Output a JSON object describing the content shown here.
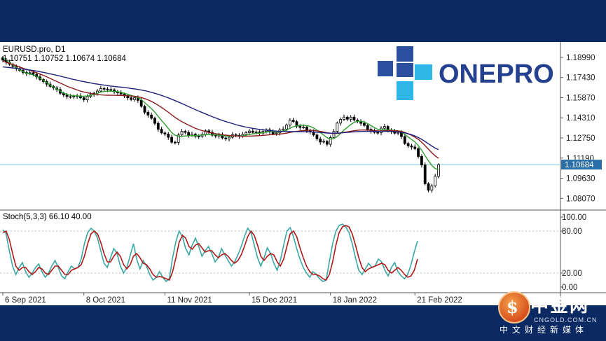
{
  "header": {
    "symbol_line": "EURUSD.pro, D1",
    "ohlc_line": "1.10751 1.10752 1.10674 1.10684"
  },
  "logo": {
    "text": "ONEPRO"
  },
  "watermark": {
    "cn": "中金网",
    "domain": "CNGOLD.COM.CN",
    "sub": "中文财经新媒体"
  },
  "colors": {
    "up_candle": "#ffffff",
    "down_candle": "#000000",
    "ma_fast": "#2e9e2e",
    "ma_mid": "#8b1c1c",
    "ma_slow": "#1f1f7a",
    "stoch_main": "#3aa7a3",
    "stoch_signal": "#b01818",
    "price_line": "#7fc8d6",
    "price_label_bg": "#2b6fa8",
    "background_band": "#0b2a63"
  },
  "chart_data": [
    {
      "type": "candlestick",
      "title": "EURUSD.pro, D1",
      "current_price": 1.10684,
      "current_price_label": "1.10684",
      "ylim": [
        1.0738,
        1.2018
      ],
      "y_ticks": [
        "1.18990",
        "1.17430",
        "1.15870",
        "1.14310",
        "1.12750",
        "1.11190",
        "1.09630",
        "1.08070"
      ],
      "x_tick_labels": [
        "6 Sep 2021",
        "8 Oct 2021",
        "11 Nov 2021",
        "15 Dec 2021",
        "18 Jan 2022",
        "21 Feb 2022"
      ],
      "x_ticks_at_bar": [
        0,
        24,
        48,
        73,
        97,
        122
      ],
      "series": [
        {
          "kind": "price",
          "close": [
            1.1878,
            1.1862,
            1.1845,
            1.1828,
            1.1812,
            1.1798,
            1.1782,
            1.1774,
            1.178,
            1.1768,
            1.1748,
            1.1728,
            1.1712,
            1.1692,
            1.1674,
            1.1662,
            1.165,
            1.1621,
            1.1607,
            1.1595,
            1.1592,
            1.1598,
            1.1601,
            1.1586,
            1.157,
            1.1596,
            1.161,
            1.1622,
            1.1638,
            1.1658,
            1.1654,
            1.165,
            1.1648,
            1.1632,
            1.1624,
            1.1615,
            1.16,
            1.1586,
            1.1572,
            1.1588,
            1.1566,
            1.152,
            1.1474,
            1.1452,
            1.1428,
            1.1388,
            1.1342,
            1.1314,
            1.1305,
            1.128,
            1.1242,
            1.124,
            1.1298,
            1.1326,
            1.1318,
            1.1296,
            1.1304,
            1.1288,
            1.1287,
            1.1302,
            1.133,
            1.1318,
            1.1296,
            1.129,
            1.1298,
            1.1275,
            1.1268,
            1.128,
            1.13,
            1.1296,
            1.1288,
            1.1302,
            1.1316,
            1.1328,
            1.1318,
            1.1322,
            1.1312,
            1.1326,
            1.1338,
            1.1322,
            1.1308,
            1.1314,
            1.1336,
            1.1344,
            1.1375,
            1.1412,
            1.1402,
            1.1366,
            1.1356,
            1.136,
            1.133,
            1.1322,
            1.1298,
            1.1268,
            1.1243,
            1.1248,
            1.1226,
            1.1278,
            1.1326,
            1.139,
            1.1418,
            1.1436,
            1.142,
            1.1436,
            1.1414,
            1.1404,
            1.1388,
            1.1372,
            1.1342,
            1.1328,
            1.1318,
            1.1316,
            1.135,
            1.1364,
            1.1334,
            1.1326,
            1.1312,
            1.1318,
            1.1286,
            1.1232,
            1.1214,
            1.1205,
            1.1192,
            1.1132,
            1.1066,
            1.092,
            1.087,
            1.0904,
            1.0978,
            1.1068
          ]
        },
        {
          "name": "",
          "kind": "ma",
          "period": 8,
          "color": "#2e9e2e",
          "values": [
            1.1898,
            1.1876,
            1.1858,
            1.1838,
            1.182,
            1.1802,
            1.1788,
            1.1776,
            1.177,
            1.1763,
            1.1752,
            1.1738,
            1.1721,
            1.1704,
            1.1686,
            1.1669,
            1.1654,
            1.1637,
            1.1623,
            1.1612,
            1.1605,
            1.1602,
            1.1601,
            1.1599,
            1.1598,
            1.16,
            1.1605,
            1.1612,
            1.162,
            1.163,
            1.1635,
            1.1637,
            1.1638,
            1.1636,
            1.1633,
            1.1628,
            1.1621,
            1.1613,
            1.1604,
            1.1597,
            1.1588,
            1.1572,
            1.1549,
            1.1525,
            1.1502,
            1.1474,
            1.1442,
            1.141,
            1.138,
            1.1348,
            1.1316,
            1.1296,
            1.1289,
            1.1287,
            1.129,
            1.1292,
            1.1294,
            1.1293,
            1.1295,
            1.1298,
            1.13,
            1.1302,
            1.13,
            1.1299,
            1.1298,
            1.1295,
            1.129,
            1.1288,
            1.129,
            1.129,
            1.129,
            1.1292,
            1.1296,
            1.1302,
            1.1306,
            1.131,
            1.1312,
            1.1316,
            1.1321,
            1.1323,
            1.1322,
            1.1321,
            1.1323,
            1.1327,
            1.1336,
            1.135,
            1.1362,
            1.1368,
            1.1372,
            1.1374,
            1.137,
            1.1364,
            1.1352,
            1.1336,
            1.1316,
            1.1297,
            1.1276,
            1.1267,
            1.127,
            1.1286,
            1.131,
            1.1336,
            1.1357,
            1.1378,
            1.1395,
            1.1404,
            1.1404,
            1.1398,
            1.1386,
            1.137,
            1.1356,
            1.1342,
            1.1338,
            1.1339,
            1.1338,
            1.1336,
            1.1332,
            1.1329,
            1.132,
            1.1302,
            1.1282,
            1.1263,
            1.1244,
            1.1216,
            1.118,
            1.1138,
            1.1098,
            1.1062,
            1.1038,
            1.103
          ]
        },
        {
          "name": "",
          "kind": "ma",
          "period": 21,
          "color": "#8b1c1c",
          "values": [
            1.187,
            1.186,
            1.1852,
            1.1843,
            1.1834,
            1.1824,
            1.1815,
            1.1806,
            1.1798,
            1.1789,
            1.178,
            1.177,
            1.176,
            1.1748,
            1.1736,
            1.1724,
            1.1712,
            1.17,
            1.1688,
            1.1676,
            1.1666,
            1.1656,
            1.1647,
            1.1638,
            1.1631,
            1.1625,
            1.162,
            1.1616,
            1.1612,
            1.1609,
            1.1607,
            1.1606,
            1.1605,
            1.1605,
            1.1604,
            1.1604,
            1.1603,
            1.1602,
            1.16,
            1.1597,
            1.1594,
            1.1588,
            1.158,
            1.157,
            1.1558,
            1.1544,
            1.1528,
            1.1511,
            1.1493,
            1.1474,
            1.1454,
            1.1434,
            1.1417,
            1.1401,
            1.1387,
            1.1374,
            1.1362,
            1.135,
            1.134,
            1.1332,
            1.1325,
            1.1318,
            1.1313,
            1.1308,
            1.1304,
            1.13,
            1.1297,
            1.1294,
            1.1292,
            1.129,
            1.1289,
            1.1288,
            1.1288,
            1.1289,
            1.129,
            1.1291,
            1.1293,
            1.1295,
            1.1297,
            1.1299,
            1.1301,
            1.1303,
            1.1305,
            1.1308,
            1.1312,
            1.1317,
            1.1322,
            1.1326,
            1.1329,
            1.1332,
            1.1334,
            1.1334,
            1.1333,
            1.133,
            1.1326,
            1.1321,
            1.1315,
            1.1311,
            1.1309,
            1.131,
            1.1313,
            1.1318,
            1.1322,
            1.1327,
            1.1331,
            1.1334,
            1.1336,
            1.1337,
            1.1336,
            1.1334,
            1.1332,
            1.133,
            1.133,
            1.1331,
            1.1332,
            1.1332,
            1.1331,
            1.133,
            1.1326,
            1.1318,
            1.1307,
            1.1295,
            1.1281,
            1.1264,
            1.1242,
            1.1216,
            1.1188,
            1.116,
            1.1136,
            1.1118
          ]
        },
        {
          "name": "",
          "kind": "ma",
          "period": 50,
          "color": "#1f1f7a",
          "values": [
            1.1825,
            1.1822,
            1.182,
            1.1817,
            1.1814,
            1.1811,
            1.1808,
            1.1805,
            1.1801,
            1.1797,
            1.1793,
            1.1788,
            1.1783,
            1.1778,
            1.1772,
            1.1766,
            1.176,
            1.1754,
            1.1747,
            1.1741,
            1.1734,
            1.1728,
            1.1722,
            1.1716,
            1.1711,
            1.1706,
            1.1701,
            1.1696,
            1.1692,
            1.1688,
            1.1684,
            1.168,
            1.1677,
            1.1674,
            1.1671,
            1.1668,
            1.1665,
            1.1662,
            1.1658,
            1.1655,
            1.1651,
            1.1646,
            1.1641,
            1.1635,
            1.1628,
            1.1621,
            1.1613,
            1.1604,
            1.1595,
            1.1585,
            1.1575,
            1.1564,
            1.1553,
            1.1541,
            1.153,
            1.1518,
            1.1506,
            1.1494,
            1.1483,
            1.1472,
            1.1461,
            1.145,
            1.144,
            1.143,
            1.142,
            1.1411,
            1.1402,
            1.1394,
            1.1386,
            1.1378,
            1.1371,
            1.1365,
            1.1359,
            1.1354,
            1.1349,
            1.1345,
            1.1341,
            1.1338,
            1.1335,
            1.1332,
            1.133,
            1.1328,
            1.1326,
            1.1325,
            1.1324,
            1.1324,
            1.1324,
            1.1324,
            1.1324,
            1.1324,
            1.1323,
            1.1322,
            1.1321,
            1.1319,
            1.1317,
            1.1315,
            1.1313,
            1.1312,
            1.1312,
            1.1313,
            1.1314,
            1.1316,
            1.1318,
            1.132,
            1.1322,
            1.1324,
            1.1325,
            1.1326,
            1.1326,
            1.1326,
            1.1326,
            1.1326,
            1.1326,
            1.1326,
            1.1326,
            1.1325,
            1.1324,
            1.1322,
            1.1319,
            1.1314,
            1.1308,
            1.13,
            1.129,
            1.1278,
            1.1264,
            1.1248,
            1.123,
            1.1212,
            1.1196,
            1.1184
          ]
        }
      ]
    },
    {
      "type": "line",
      "title": "Stoch(5,3,3) 66.10 40.00",
      "ylim": [
        0,
        100
      ],
      "y_ticks": [
        "100.00",
        "80.00",
        "20.00",
        "0.00"
      ],
      "series": [
        {
          "name": "",
          "color": "#3aa7a3",
          "values": [
            82,
            76,
            52,
            30,
            18,
            28,
            35,
            22,
            14,
            20,
            28,
            33,
            22,
            14,
            20,
            30,
            38,
            28,
            16,
            12,
            22,
            30,
            26,
            28,
            40,
            62,
            78,
            84,
            80,
            70,
            52,
            34,
            28,
            42,
            55,
            48,
            30,
            20,
            28,
            45,
            62,
            40,
            26,
            38,
            30,
            18,
            10,
            14,
            22,
            14,
            8,
            12,
            42,
            65,
            80,
            72,
            55,
            46,
            60,
            70,
            58,
            44,
            52,
            58,
            48,
            36,
            42,
            55,
            46,
            38,
            30,
            36,
            46,
            58,
            72,
            84,
            78,
            60,
            42,
            30,
            42,
            56,
            48,
            34,
            24,
            38,
            60,
            80,
            85,
            72,
            55,
            40,
            28,
            20,
            14,
            22,
            18,
            12,
            8,
            10,
            36,
            62,
            80,
            88,
            90,
            86,
            78,
            62,
            42,
            24,
            18,
            26,
            34,
            28,
            30,
            40,
            36,
            24,
            16,
            28,
            35,
            22,
            16,
            12,
            18,
            32,
            50,
            66
          ]
        },
        {
          "name": "",
          "color": "#b01818",
          "values": [
            78,
            80,
            68,
            48,
            30,
            24,
            28,
            28,
            22,
            18,
            22,
            28,
            26,
            20,
            18,
            24,
            30,
            30,
            24,
            18,
            18,
            24,
            26,
            28,
            32,
            44,
            62,
            76,
            80,
            76,
            64,
            48,
            36,
            36,
            44,
            50,
            44,
            32,
            26,
            32,
            44,
            48,
            42,
            34,
            32,
            26,
            18,
            14,
            15,
            14,
            12,
            10,
            22,
            42,
            64,
            74,
            70,
            58,
            54,
            60,
            62,
            56,
            50,
            52,
            52,
            46,
            42,
            46,
            48,
            44,
            38,
            34,
            38,
            46,
            58,
            72,
            80,
            74,
            60,
            44,
            38,
            44,
            48,
            46,
            36,
            30,
            40,
            58,
            76,
            80,
            72,
            56,
            42,
            30,
            22,
            18,
            18,
            16,
            12,
            10,
            18,
            36,
            60,
            78,
            86,
            88,
            86,
            76,
            60,
            42,
            28,
            22,
            26,
            28,
            30,
            32,
            34,
            32,
            24,
            20,
            24,
            28,
            24,
            18,
            14,
            16,
            24,
            40
          ]
        }
      ]
    }
  ]
}
